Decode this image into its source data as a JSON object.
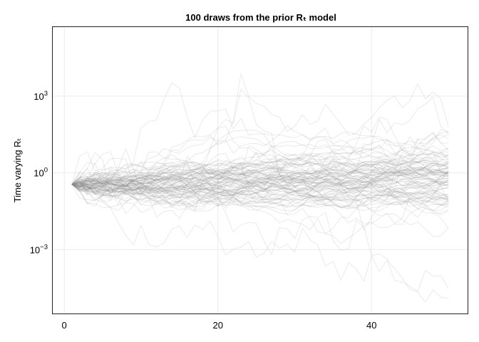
{
  "chart_data": {
    "type": "line",
    "title": "100 draws from the prior Rₜ model",
    "xlabel": "",
    "ylabel": "Time varying Rₜ",
    "x_range": [
      1,
      50
    ],
    "xlim": [
      -1.5,
      52.5
    ],
    "ylim": [
      -5.5,
      5.7
    ],
    "y_scale": "log10",
    "x_ticks": [
      {
        "value": 0,
        "label": "0"
      },
      {
        "value": 20,
        "label": "20"
      },
      {
        "value": 40,
        "label": "40"
      }
    ],
    "y_ticks": [
      {
        "value": 3,
        "base": "10",
        "exp": "3"
      },
      {
        "value": 0,
        "base": "10",
        "exp": "0"
      },
      {
        "value": -3,
        "base": "10",
        "exp": "−3"
      }
    ],
    "grid": true,
    "legend": "none",
    "series_count": 100,
    "series_color": "#8c8c8c",
    "seed": 7,
    "start_log10": -0.45
  }
}
